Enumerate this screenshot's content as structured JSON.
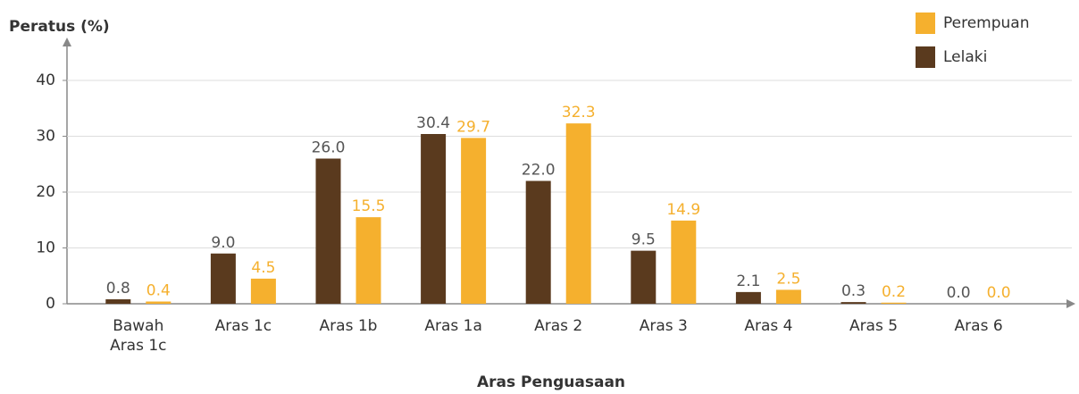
{
  "chart_data": {
    "type": "bar",
    "y_label": "Peratus (%)",
    "x_label": "Aras Penguasaan",
    "categories": [
      "Bawah Aras 1c",
      "Aras 1c",
      "Aras 1b",
      "Aras 1a",
      "Aras 2",
      "Aras 3",
      "Aras 4",
      "Aras 5",
      "Aras 6"
    ],
    "series": [
      {
        "name": "Lelaki",
        "color": "#5a3a1e",
        "label_color": "#555555",
        "values": [
          0.8,
          9.0,
          26.0,
          30.4,
          22.0,
          9.5,
          2.1,
          0.3,
          0.0
        ],
        "value_labels": [
          "0.8",
          "9.0",
          "26.0",
          "30.4",
          "22.0",
          "9.5",
          "2.1",
          "0.3",
          "0.0"
        ]
      },
      {
        "name": "Perempuan",
        "color": "#f5b02e",
        "label_color": "#f5b02e",
        "values": [
          0.4,
          4.5,
          15.5,
          29.7,
          32.3,
          14.9,
          2.5,
          0.2,
          0.0
        ],
        "value_labels": [
          "0.4",
          "4.5",
          "15.5",
          "29.7",
          "32.3",
          "14.9",
          "2.5",
          "0.2",
          "0.0"
        ]
      }
    ],
    "ylim": [
      0,
      40
    ],
    "yticks": [
      0,
      10,
      20,
      30,
      40
    ],
    "grid": true,
    "legend": "top-right"
  }
}
